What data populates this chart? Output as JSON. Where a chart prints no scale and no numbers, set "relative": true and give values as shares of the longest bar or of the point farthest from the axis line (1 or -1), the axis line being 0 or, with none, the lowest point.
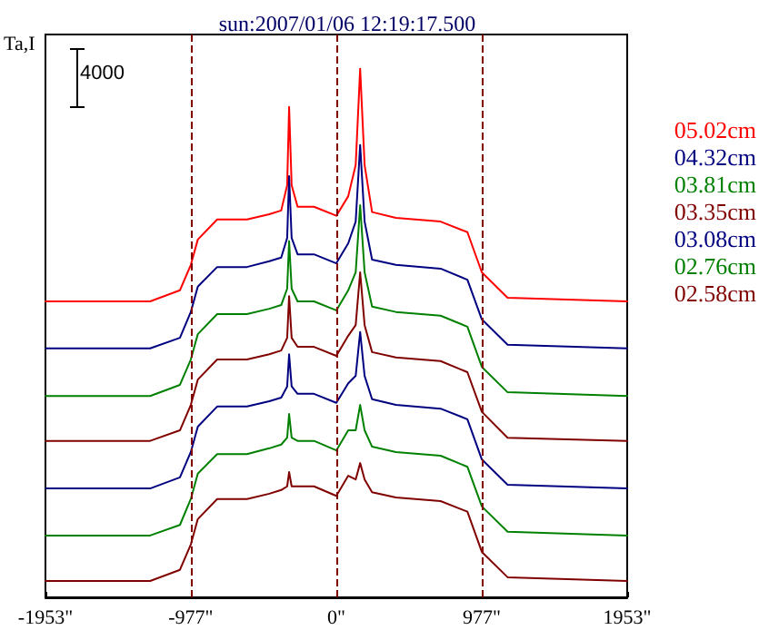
{
  "chart_data": {
    "type": "line",
    "title": "sun:2007/01/06 12:19:17.500",
    "ylabel": "Ta,I",
    "annotations": [
      "4000"
    ],
    "relative": true,
    "marker": "none",
    "line_style": "solid",
    "grid": false,
    "legend": "right",
    "x": [
      -1953,
      -1250,
      -1050,
      -977,
      -930,
      -800,
      -600,
      -450,
      -370,
      -330,
      -317,
      -300,
      -260,
      -150,
      0,
      80,
      130,
      160,
      190,
      240,
      400,
      700,
      880,
      977,
      1150,
      1953
    ],
    "xlim": [
      -1953,
      1953
    ],
    "xticks": [
      {
        "value": -1953,
        "label": "-1953\""
      },
      {
        "value": -977,
        "label": "-977\""
      },
      {
        "value": 0,
        "label": "0\""
      },
      {
        "value": 977,
        "label": "977\""
      },
      {
        "value": 1953,
        "label": "1953\""
      }
    ],
    "ref_lines": [
      {
        "axis": "x",
        "value": -977,
        "color": "#800000",
        "line_style": "dashed"
      },
      {
        "axis": "x",
        "value": 0,
        "color": "#800000",
        "line_style": "dashed"
      },
      {
        "axis": "x",
        "value": 977,
        "color": "#800000",
        "line_style": "dashed"
      }
    ],
    "series": [
      {
        "name": "05.02cm",
        "color": "#ff0000",
        "values": [
          0.56,
          0.56,
          0.581,
          0.629,
          0.677,
          0.715,
          0.715,
          0.725,
          0.732,
          0.78,
          0.928,
          0.78,
          0.739,
          0.739,
          0.722,
          0.759,
          0.818,
          1,
          0.818,
          0.729,
          0.718,
          0.711,
          0.691,
          0.615,
          0.567,
          0.56
        ]
      },
      {
        "name": "04.32cm",
        "color": "#000080",
        "values": [
          0.471,
          0.471,
          0.491,
          0.54,
          0.588,
          0.625,
          0.625,
          0.636,
          0.643,
          0.68,
          0.797,
          0.68,
          0.649,
          0.649,
          0.632,
          0.67,
          0.711,
          0.856,
          0.711,
          0.639,
          0.629,
          0.622,
          0.601,
          0.526,
          0.478,
          0.471
        ]
      },
      {
        "name": "03.81cm",
        "color": "#008000",
        "values": [
          0.381,
          0.381,
          0.402,
          0.45,
          0.498,
          0.536,
          0.536,
          0.546,
          0.553,
          0.584,
          0.674,
          0.584,
          0.56,
          0.56,
          0.543,
          0.581,
          0.615,
          0.742,
          0.615,
          0.55,
          0.54,
          0.533,
          0.512,
          0.436,
          0.388,
          0.381
        ]
      },
      {
        "name": "03.35cm",
        "color": "#800000",
        "values": [
          0.296,
          0.296,
          0.316,
          0.364,
          0.412,
          0.45,
          0.45,
          0.46,
          0.467,
          0.491,
          0.57,
          0.491,
          0.474,
          0.474,
          0.457,
          0.495,
          0.515,
          0.615,
          0.515,
          0.464,
          0.454,
          0.447,
          0.426,
          0.351,
          0.302,
          0.296
        ]
      },
      {
        "name": "03.08cm",
        "color": "#000080",
        "values": [
          0.206,
          0.206,
          0.227,
          0.275,
          0.323,
          0.361,
          0.361,
          0.371,
          0.378,
          0.399,
          0.46,
          0.399,
          0.385,
          0.385,
          0.368,
          0.405,
          0.419,
          0.502,
          0.419,
          0.375,
          0.364,
          0.357,
          0.337,
          0.261,
          0.213,
          0.206
        ]
      },
      {
        "name": "02.76cm",
        "color": "#008000",
        "values": [
          0.117,
          0.117,
          0.137,
          0.186,
          0.234,
          0.271,
          0.271,
          0.282,
          0.289,
          0.302,
          0.347,
          0.302,
          0.296,
          0.296,
          0.278,
          0.316,
          0.316,
          0.364,
          0.316,
          0.285,
          0.275,
          0.268,
          0.247,
          0.172,
          0.124,
          0.117
        ]
      },
      {
        "name": "02.58cm",
        "color": "#800000",
        "values": [
          0.031,
          0.031,
          0.052,
          0.1,
          0.148,
          0.186,
          0.186,
          0.196,
          0.203,
          0.21,
          0.237,
          0.21,
          0.21,
          0.21,
          0.192,
          0.23,
          0.223,
          0.254,
          0.223,
          0.199,
          0.189,
          0.182,
          0.162,
          0.086,
          0.038,
          0.031
        ]
      }
    ]
  }
}
